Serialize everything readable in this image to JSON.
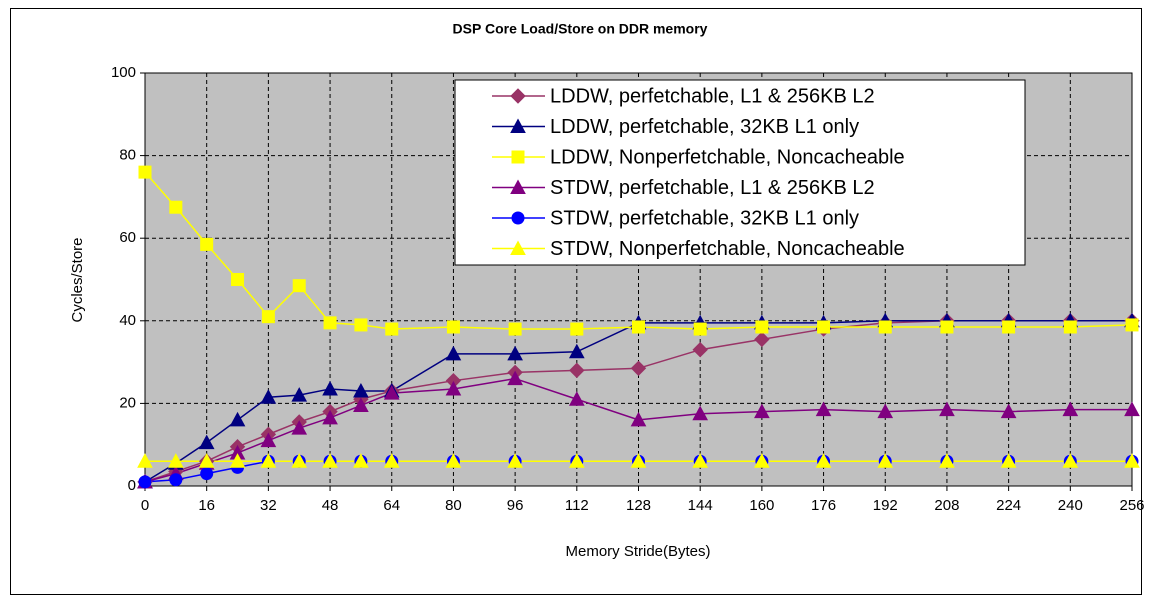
{
  "chart_data": {
    "type": "line",
    "title": "DSP Core Load/Store on DDR memory",
    "x_label": "Memory Stride(Bytes)",
    "y_label": "Cycles/Store",
    "x": [
      0,
      8,
      16,
      24,
      32,
      40,
      48,
      56,
      64,
      80,
      96,
      112,
      128,
      144,
      160,
      176,
      192,
      208,
      224,
      240,
      256
    ],
    "xlim": [
      0,
      256
    ],
    "xticks": [
      0,
      16,
      32,
      48,
      64,
      80,
      96,
      112,
      128,
      144,
      160,
      176,
      192,
      208,
      224,
      240,
      256
    ],
    "ylim": [
      0,
      100
    ],
    "yticks": [
      0,
      20,
      40,
      60,
      80,
      100
    ],
    "grid": true,
    "legend": "upper right",
    "series": [
      {
        "name": "LDDW, perfetchable, L1 & 256KB L2",
        "color": "#993366",
        "marker": "diamond",
        "values": [
          1,
          3.5,
          6,
          9.5,
          12.5,
          15.5,
          18,
          21,
          23,
          25.5,
          27.5,
          28,
          28.5,
          33,
          35.5,
          38,
          39.5,
          40,
          40,
          40,
          40
        ]
      },
      {
        "name": "LDDW, perfetchable, 32KB L1 only",
        "color": "#000080",
        "marker": "triangle",
        "values": [
          1,
          5.5,
          10.5,
          16,
          21.5,
          22,
          23.5,
          23,
          23,
          32,
          32,
          32.5,
          39.5,
          39.5,
          39.5,
          39.5,
          40,
          40,
          40,
          40,
          40
        ]
      },
      {
        "name": "LDDW, Nonperfetchable, Noncacheable",
        "color": "#ffff00",
        "marker": "square",
        "values": [
          76,
          67.5,
          58.5,
          50,
          41,
          48.5,
          39.5,
          39,
          38,
          38.5,
          38,
          38,
          38.5,
          38,
          38.5,
          38.5,
          38.5,
          38.5,
          38.5,
          38.5,
          39
        ]
      },
      {
        "name": "STDW, perfetchable, L1 & 256KB L2",
        "color": "#800080",
        "marker": "triangle",
        "values": [
          1,
          3,
          5.5,
          8,
          11,
          14,
          16.5,
          19.5,
          22.5,
          23.5,
          26,
          21,
          16,
          17.5,
          18,
          18.5,
          18,
          18.5,
          18,
          18.5,
          18.5
        ]
      },
      {
        "name": "STDW, perfetchable, 32KB L1 only",
        "color": "#0000ff",
        "marker": "circle",
        "values": [
          1,
          1.5,
          3,
          4.5,
          6,
          6,
          6,
          6,
          6,
          6,
          6,
          6,
          6,
          6,
          6,
          6,
          6,
          6,
          6,
          6,
          6
        ]
      },
      {
        "name": "STDW, Nonperfetchable, Noncacheable",
        "color": "#ffff00",
        "marker": "triangle",
        "values": [
          6,
          6,
          6,
          6,
          6,
          6,
          6,
          6,
          6,
          6,
          6,
          6,
          6,
          6,
          6,
          6,
          6,
          6,
          6,
          6,
          6
        ]
      }
    ]
  }
}
